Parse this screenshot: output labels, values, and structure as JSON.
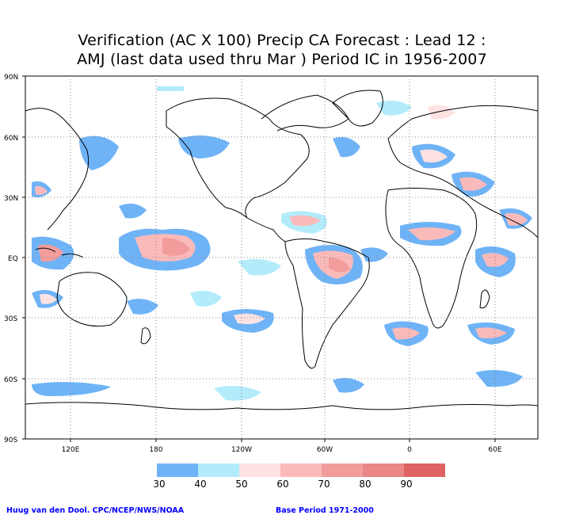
{
  "title": {
    "line1": "Verification (AC X 100) Precip CA Forecast : Lead 12 :",
    "line2": "AMJ (last data used thru Mar ) Period IC in 1956-2007"
  },
  "axes": {
    "lat_labels": [
      "90N",
      "60N",
      "30N",
      "EQ",
      "30S",
      "60S",
      "90S"
    ],
    "lon_labels": [
      "120E",
      "180",
      "120W",
      "60W",
      "0",
      "60E"
    ]
  },
  "legend": {
    "ticks": [
      "30",
      "40",
      "50",
      "60",
      "70",
      "80",
      "90"
    ],
    "colors": [
      "#6fb3f7",
      "#b2ecfb",
      "#ffffff",
      "#fde2e2",
      "#fbbaba",
      "#f29c9c",
      "#e98686",
      "#df6262"
    ]
  },
  "footer": {
    "credit": "Huug van den Dool. CPC/NCEP/NWS/NOAA",
    "base_period": "Base Period 1971-2000"
  }
}
